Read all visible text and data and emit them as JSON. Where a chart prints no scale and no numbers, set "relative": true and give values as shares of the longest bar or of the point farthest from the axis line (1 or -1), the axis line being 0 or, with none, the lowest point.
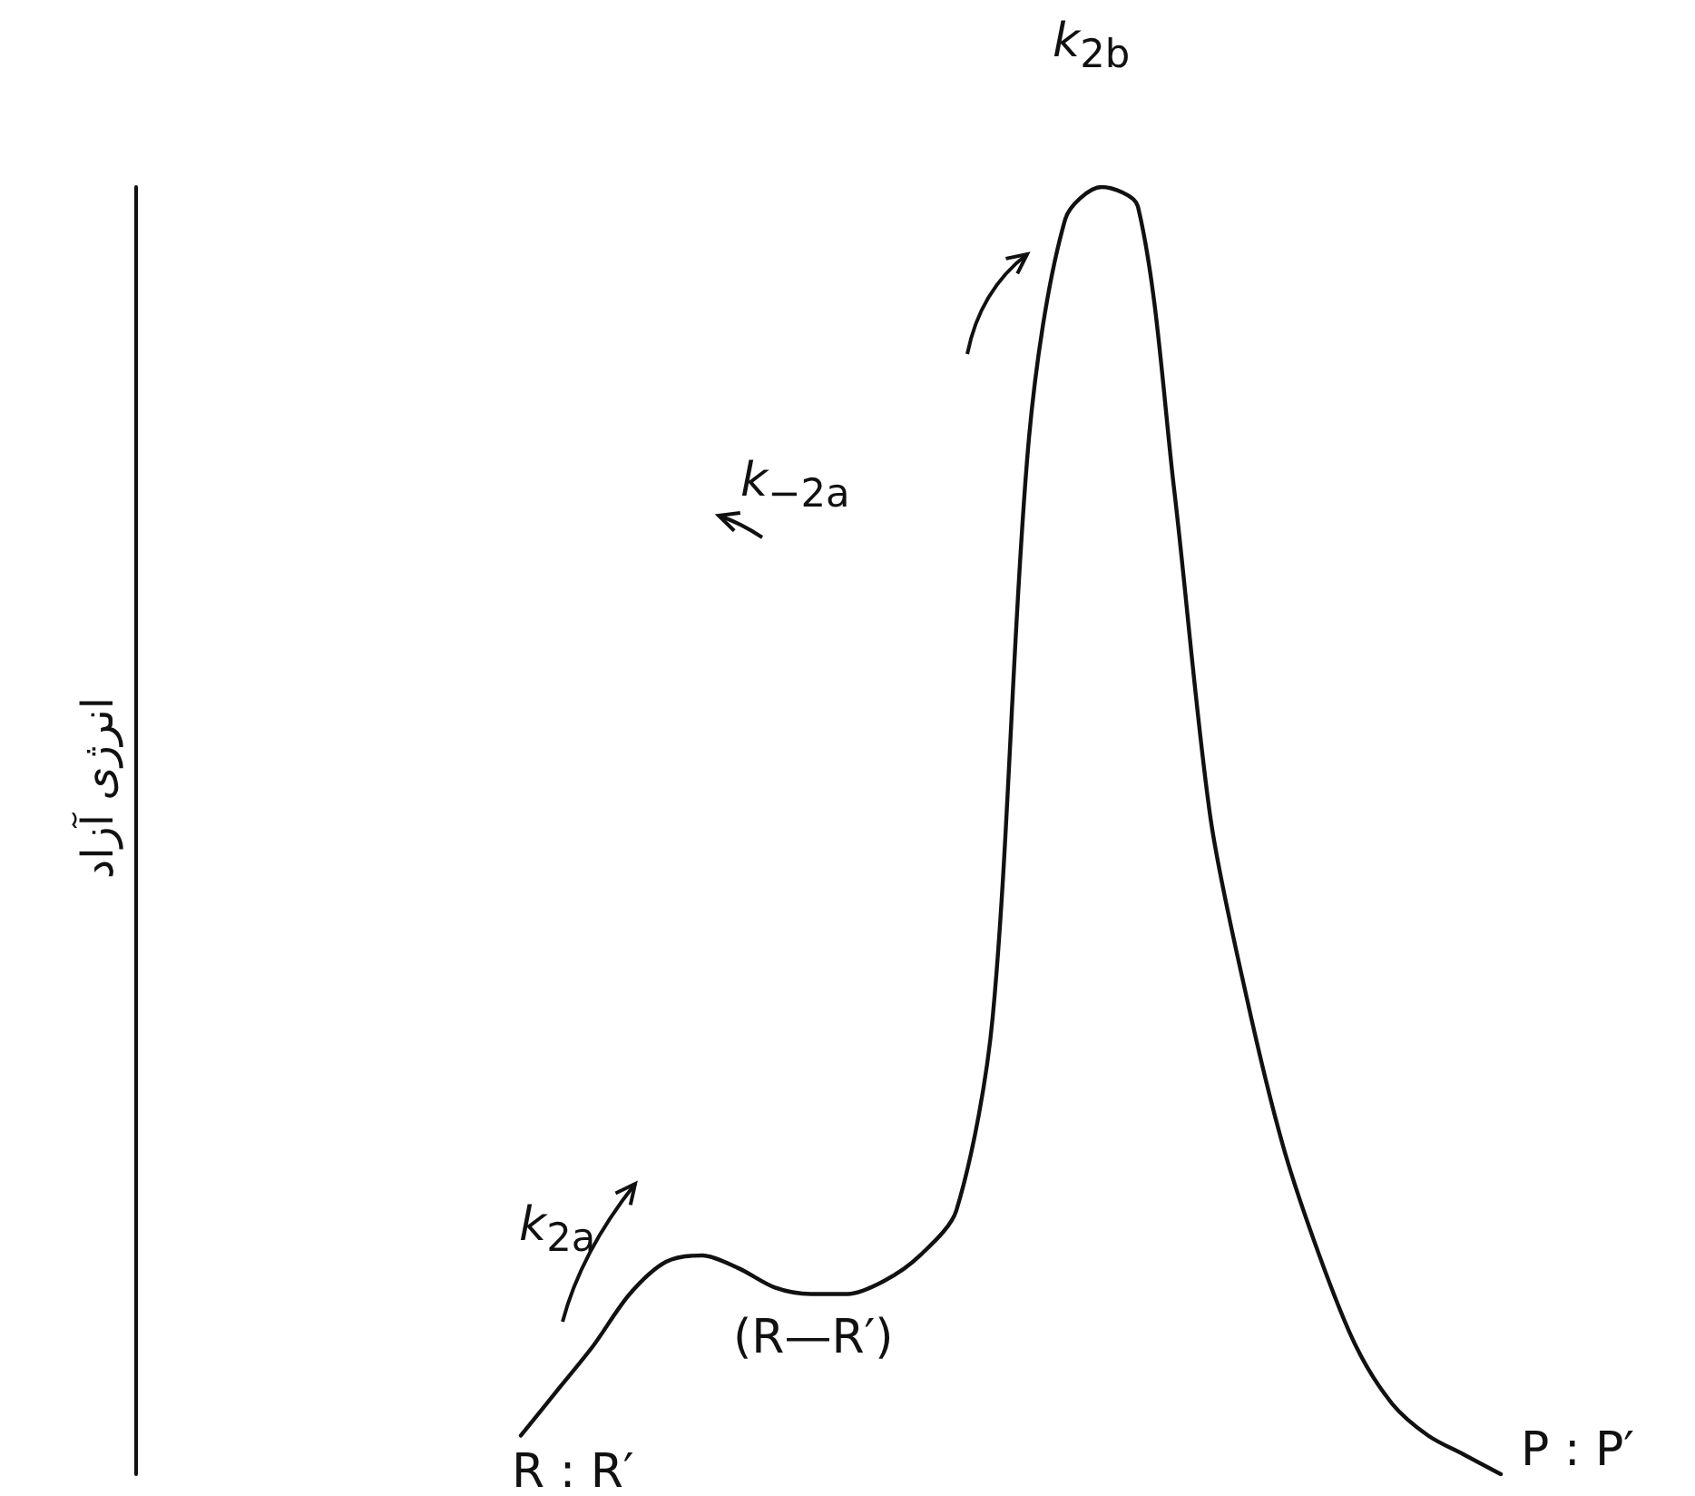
{
  "chart_data": {
    "type": "line",
    "relative": true,
    "color": "#111111",
    "marker": "none",
    "line_style": "solid",
    "grid": false,
    "categories": [
      null,
      null,
      null,
      null,
      null,
      null,
      null,
      null,
      null,
      null,
      null,
      null,
      null,
      null,
      null,
      null,
      null,
      null,
      null,
      null,
      null,
      null,
      null,
      null,
      null,
      null,
      null,
      null
    ],
    "values": [
      0.03,
      0.065,
      0.1,
      0.14,
      0.165,
      0.17,
      0.16,
      0.145,
      0.14,
      0.14,
      0.15,
      0.17,
      0.205,
      0.355,
      0.805,
      0.975,
      1,
      0.985,
      0.765,
      0.51,
      0.37,
      0.255,
      0.17,
      0.1,
      0.055,
      0.03,
      0.015,
      0
    ],
    "annotations": [
      "k$_{2b}$",
      "k$_{−2a}$",
      "k$_{2a}$",
      "(R—R′)",
      "R : R′",
      "P : P′",
      "انرژی آزاد"
    ]
  }
}
